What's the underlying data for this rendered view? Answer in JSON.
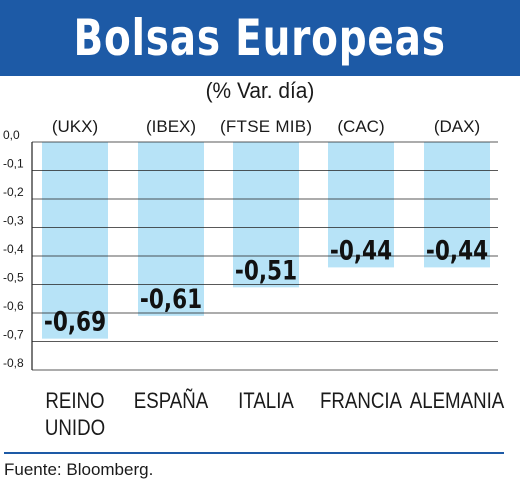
{
  "title": "Bolsas Europeas",
  "subtitle": "(% Var. día)",
  "source": "Fuente: Bloomberg.",
  "colors": {
    "header": "#1d5aa6",
    "bar": "#b7e3f7",
    "grid": "#222222"
  },
  "chart_data": {
    "type": "bar",
    "title": "Bolsas Europeas",
    "subtitle": "(% Var. día)",
    "categories": [
      [
        "REINO",
        "UNIDO"
      ],
      [
        "ESPAÑA"
      ],
      [
        "ITALIA"
      ],
      [
        "FRANCIA"
      ],
      [
        "ALEMANIA"
      ]
    ],
    "index_labels": [
      "(UKX)",
      "(IBEX)",
      "(FTSE MIB)",
      "(CAC)",
      "(DAX)"
    ],
    "values": [
      -0.69,
      -0.61,
      -0.51,
      -0.44,
      -0.44
    ],
    "value_labels": [
      "-0,69",
      "-0,61",
      "-0,51",
      "-0,44",
      "-0,44"
    ],
    "yticks": [
      "0,0",
      "-0,1",
      "-0,2",
      "-0,3",
      "-0,4",
      "-0,5",
      "-0,6",
      "-0,7",
      "-0,8"
    ],
    "ylim": [
      -0.8,
      0
    ],
    "grid": true,
    "xlabel": "",
    "ylabel": ""
  }
}
